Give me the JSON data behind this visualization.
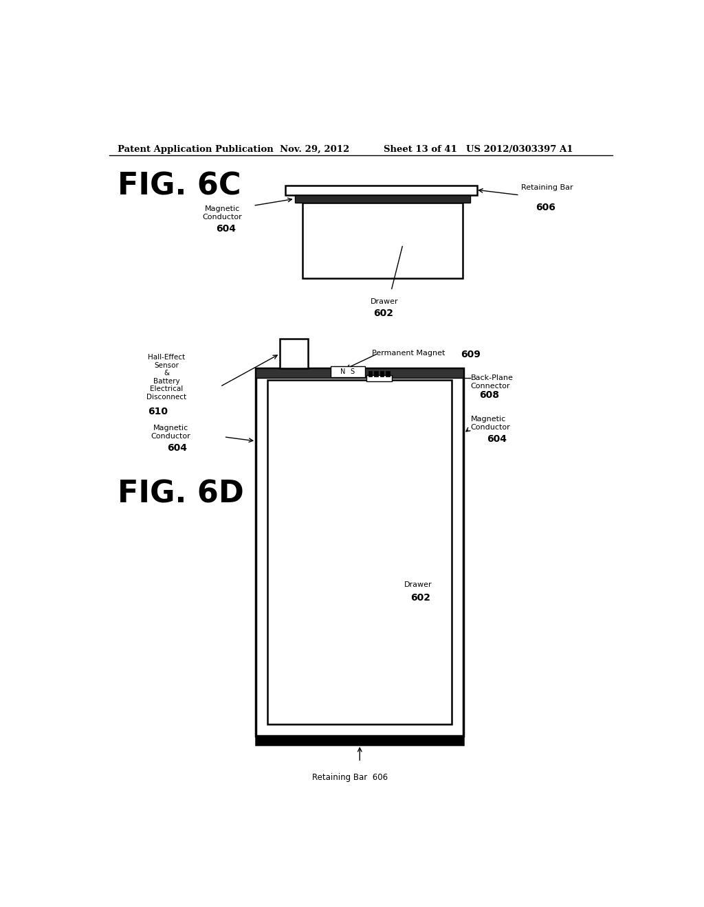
{
  "bg_color": "#ffffff",
  "header_text": "Patent Application Publication",
  "header_date": "Nov. 29, 2012",
  "header_sheet": "Sheet 13 of 41",
  "header_patent": "US 2012/0303397 A1",
  "fig6c_label": "FIG. 6C",
  "fig6d_label": "FIG. 6D",
  "label_retaining_bar": "Retaining Bar",
  "label_606": "606",
  "label_magnetic_conductor": "Magnetic\nConductor",
  "label_604": "604",
  "label_drawer": "Drawer",
  "label_602": "602",
  "label_hall": "Hall-Effect\nSensor\n&\nBattery\nElectrical\nDisconnect",
  "label_610": "610",
  "label_perm_magnet": "Permanent Magnet",
  "label_609": "609",
  "label_backplane": "Back-Plane\nConnector",
  "label_608": "608"
}
